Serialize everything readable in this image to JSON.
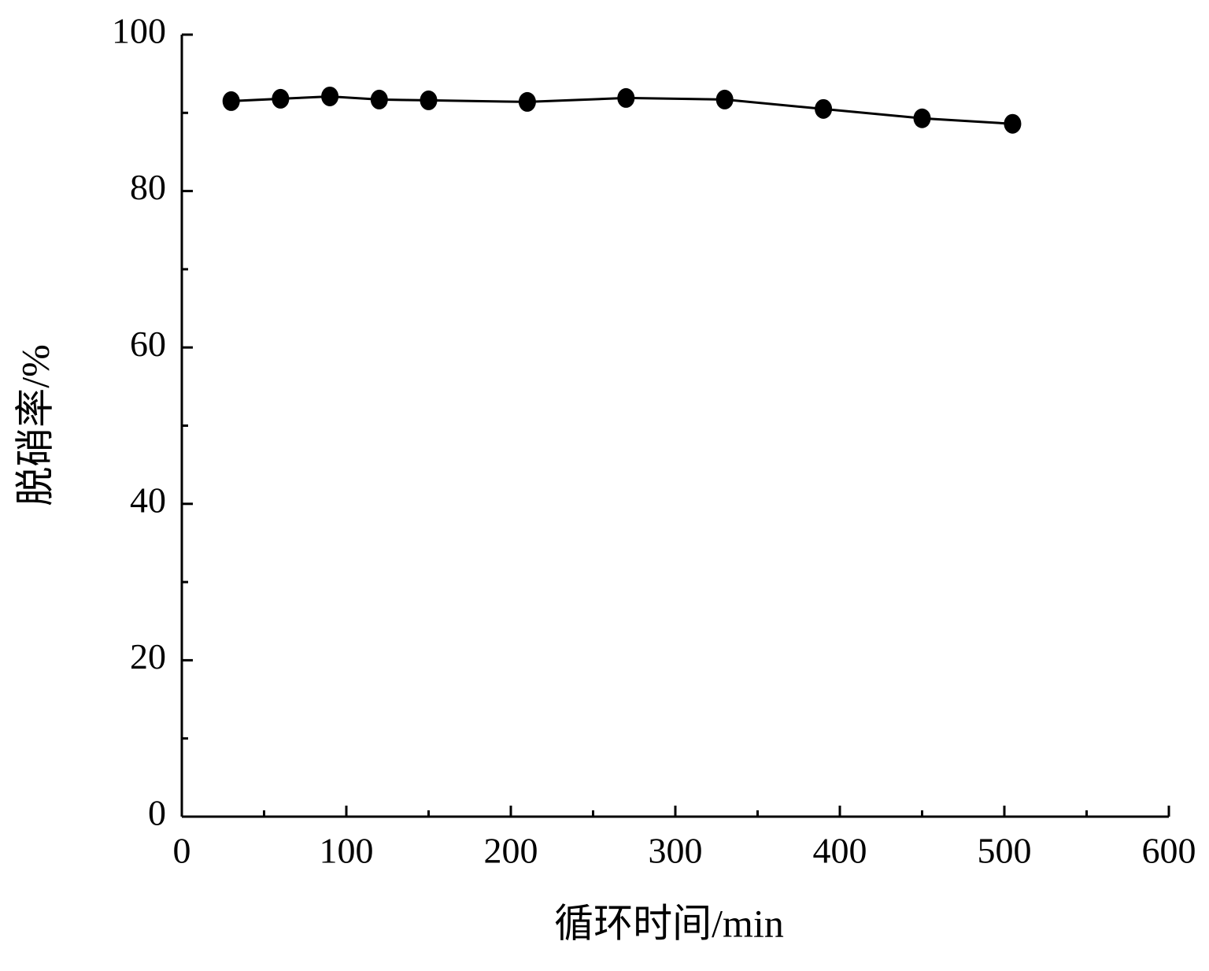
{
  "chart_data": {
    "type": "line",
    "x_label": "循环时间/min",
    "y_label": "脱硝率/%",
    "x": [
      30,
      60,
      90,
      120,
      150,
      210,
      270,
      330,
      390,
      450,
      505
    ],
    "series": [
      {
        "color": "#000000",
        "values": [
          91.5,
          91.8,
          92.1,
          91.7,
          91.6,
          91.4,
          91.9,
          91.7,
          90.5,
          89.3,
          88.6
        ]
      }
    ],
    "xlim": [
      0,
      600
    ],
    "xticks": [
      0,
      100,
      200,
      300,
      400,
      500,
      600
    ],
    "xminorticks": [
      50,
      150,
      250,
      350,
      450,
      550
    ],
    "ylim": [
      0,
      100
    ],
    "yticks": [
      0,
      20,
      40,
      60,
      80,
      100
    ],
    "yminorticks": [
      10,
      30,
      50,
      70,
      90
    ],
    "marker": "circle",
    "grid": false
  }
}
